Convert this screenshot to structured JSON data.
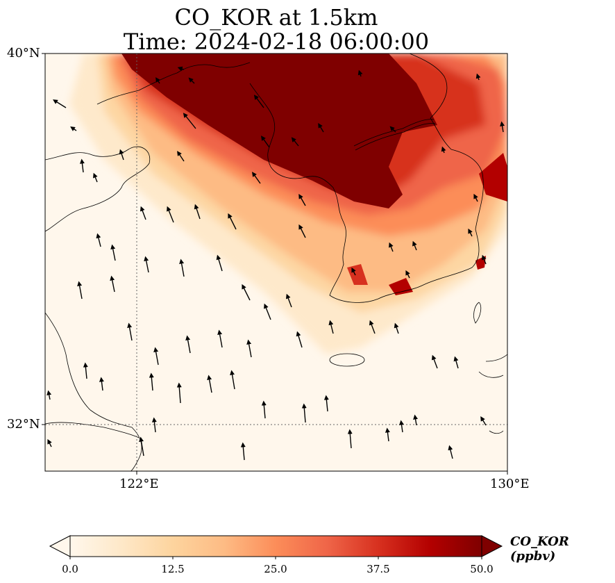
{
  "map": {
    "title_line1": "CO_KOR at 1.5km",
    "title_line2": "Time: 2024-02-18 06:00:00",
    "extent": {
      "lon_min": 120.0,
      "lon_max": 130.0,
      "lat_min": 31.0,
      "lat_max": 40.0
    },
    "gridlines": {
      "lons": [
        122.0
      ],
      "lats": [
        32.0
      ],
      "style": "dotted"
    },
    "lat_labels": [
      "40°N",
      "32°N"
    ],
    "lon_labels": [
      "122°E",
      "130°E"
    ],
    "field": "CO concentration (ppbv)",
    "wind_vectors": "shown as black arrows, predominantly north-northwest flow"
  },
  "colorbar": {
    "label": "CO_KOR (ppbv)",
    "ticks": [
      "0.0",
      "12.5",
      "25.0",
      "37.5",
      "50.0"
    ],
    "min": 0.0,
    "max": 50.0,
    "extend": "both",
    "colormap": [
      "#fff7ec",
      "#fee8c8",
      "#fdd49e",
      "#fdbb84",
      "#fc8d59",
      "#ef6548",
      "#d7301f",
      "#b30000",
      "#7f0000"
    ]
  }
}
